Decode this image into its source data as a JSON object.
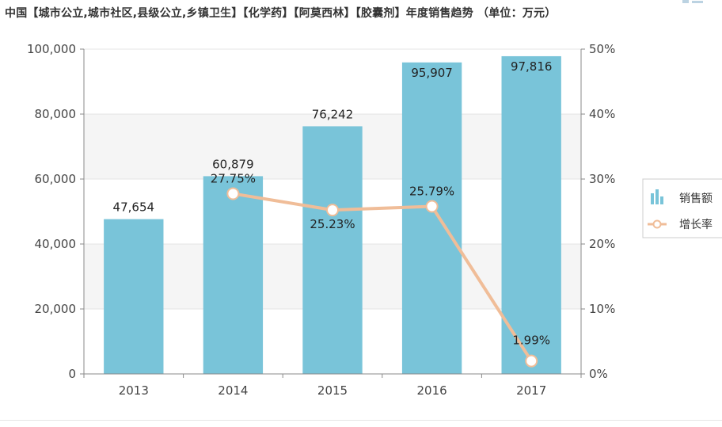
{
  "title": "中国【城市公立,城市社区,县级公立,乡镇卫生】【化学药】【阿莫西林】【胶囊剂】年度销售趋势 （单位：万元）",
  "colors": {
    "bar": "#79c4d9",
    "line": "#f0bd98",
    "marker_fill": "#ffffff",
    "axis": "#8a8a8a",
    "band": "#f5f5f5",
    "grid": "#e4e4e4"
  },
  "chart_data": {
    "type": "bar",
    "title": "中国【城市公立,城市社区,县级公立,乡镇卫生】【化学药】【阿莫西林】【胶囊剂】年度销售趋势 （单位：万元）",
    "categories": [
      "2013",
      "2014",
      "2015",
      "2016",
      "2017"
    ],
    "series": [
      {
        "name": "销售额",
        "type": "bar",
        "axis": "left",
        "values": [
          47654,
          60879,
          76242,
          95907,
          97816
        ],
        "labels": [
          "47,654",
          "60,879",
          "76,242",
          "95,907",
          "97,816"
        ]
      },
      {
        "name": "增长率",
        "type": "line",
        "axis": "right",
        "values": [
          null,
          27.75,
          25.23,
          25.79,
          1.99
        ],
        "labels": [
          "",
          "27.75%",
          "25.23%",
          "25.79%",
          "1.99%"
        ]
      }
    ],
    "ylim_left": [
      0,
      100000
    ],
    "yticks_left": [
      "0",
      "20,000",
      "40,000",
      "60,000",
      "80,000",
      "100,000"
    ],
    "ylim_right": [
      0,
      50
    ],
    "yticks_right": [
      "0%",
      "10%",
      "20%",
      "30%",
      "40%",
      "50%"
    ],
    "legend": {
      "position": "right",
      "items": [
        "销售额",
        "增长率"
      ]
    }
  }
}
